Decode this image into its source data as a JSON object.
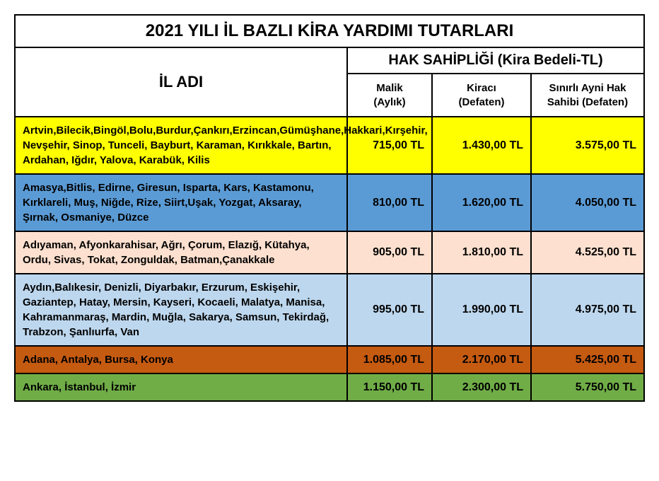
{
  "table": {
    "title": "2021 YILI İL BAZLI KİRA YARDIMI TUTARLARI",
    "col1_header": "İL ADI",
    "group_header": "HAK SAHİPLİĞİ (Kira Bedeli-TL)",
    "sub_headers": {
      "malik_l1": "Malik",
      "malik_l2": "(Aylık)",
      "kiraci_l1": "Kiracı",
      "kiraci_l2": "(Defaten)",
      "sinirli_l1": "Sınırlı Ayni Hak",
      "sinirli_l2": "Sahibi (Defaten)"
    },
    "row_colors": {
      "r0": "#ffff00",
      "r1": "#5b9bd5",
      "r2": "#fde0cf",
      "r3": "#bdd7ee",
      "r4": "#c55a11",
      "r5": "#70ad47"
    },
    "rows": [
      {
        "provinces": "Artvin,Bilecik,Bingöl,Bolu,Burdur,Çankırı,Erzincan,Gümüşhane,Hakkari,Kırşehir, Nevşehir, Sinop, Tunceli, Bayburt, Karaman, Kırıkkale, Bartın, Ardahan, Iğdır, Yalova, Karabük, Kilis",
        "malik": "715,00 TL",
        "kiraci": "1.430,00 TL",
        "sinirli": "3.575,00 TL"
      },
      {
        "provinces": "Amasya,Bitlis,  Edirne, Giresun, Isparta, Kars, Kastamonu, Kırklareli, Muş, Niğde, Rize, Siirt,Uşak, Yozgat, Aksaray, Şırnak, Osmaniye, Düzce",
        "malik": "810,00 TL",
        "kiraci": "1.620,00 TL",
        "sinirli": "4.050,00 TL"
      },
      {
        "provinces": "Adıyaman, Afyonkarahisar, Ağrı, Çorum, Elazığ, Kütahya, Ordu, Sivas, Tokat, Zonguldak, Batman,Çanakkale",
        "malik": "905,00 TL",
        "kiraci": "1.810,00 TL",
        "sinirli": "4.525,00 TL"
      },
      {
        "provinces": "Aydın,Balıkesir, Denizli, Diyarbakır, Erzurum, Eskişehir, Gaziantep, Hatay, Mersin, Kayseri, Kocaeli, Malatya, Manisa, Kahramanmaraş, Mardin, Muğla, Sakarya, Samsun, Tekirdağ, Trabzon, Şanlıurfa, Van",
        "malik": "995,00 TL",
        "kiraci": "1.990,00 TL",
        "sinirli": "4.975,00 TL"
      },
      {
        "provinces": "Adana, Antalya, Bursa, Konya",
        "malik": "1.085,00 TL",
        "kiraci": "2.170,00 TL",
        "sinirli": "5.425,00 TL"
      },
      {
        "provinces": "Ankara, İstanbul, İzmir",
        "malik": "1.150,00 TL",
        "kiraci": "2.300,00 TL",
        "sinirli": "5.750,00 TL"
      }
    ]
  }
}
